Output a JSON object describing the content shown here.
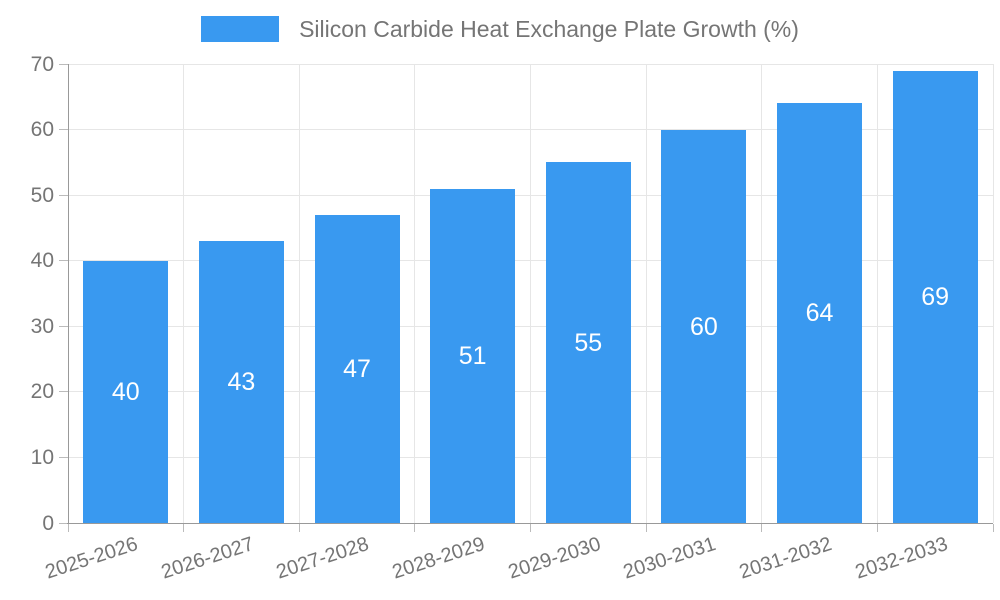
{
  "chart_data": {
    "type": "bar",
    "title": "Silicon Carbide Heat Exchange Plate Growth (%)",
    "legend_entries": [
      "Silicon Carbide Heat Exchange Plate Growth (%)"
    ],
    "legend_position": "top-center",
    "categories": [
      "2025-2026",
      "2026-2027",
      "2027-2028",
      "2028-2029",
      "2029-2030",
      "2030-2031",
      "2031-2032",
      "2032-2033"
    ],
    "values": [
      40,
      43,
      47,
      51,
      55,
      60,
      64,
      69
    ],
    "xlabel": "",
    "ylabel": "",
    "ylim": [
      0,
      70
    ],
    "yticks": [
      0,
      10,
      20,
      30,
      40,
      50,
      60,
      70
    ],
    "grid": true,
    "colors": {
      "bar": "#3999F0",
      "value_label": "#ffffff",
      "axis_line": "#999999",
      "tick": "#bbbbbb",
      "grid_line": "#e6e6e6",
      "text": "#757575"
    }
  }
}
